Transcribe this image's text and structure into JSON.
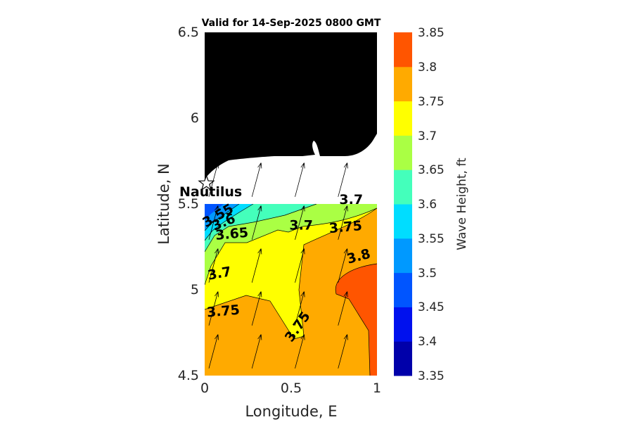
{
  "chart_data": {
    "type": "contour",
    "title": "Valid for 14-Sep-2025 0800 GMT",
    "xlabel": "Longitude, E",
    "ylabel": "Latitude, N",
    "xlim": [
      0,
      1
    ],
    "ylim": [
      4.5,
      6.5
    ],
    "xticks": [
      "0",
      "0.5",
      "1"
    ],
    "yticks": [
      "4.5",
      "5",
      "5.5",
      "6",
      "6.5"
    ],
    "colorbar": {
      "label": "Wave Height, ft",
      "range": [
        3.35,
        3.85
      ],
      "ticks": [
        "3.35",
        "3.4",
        "3.45",
        "3.5",
        "3.55",
        "3.6",
        "3.65",
        "3.7",
        "3.75",
        "3.8",
        "3.85"
      ],
      "colors": [
        "#0000aa",
        "#0011ee",
        "#0055ff",
        "#0099ff",
        "#00ddff",
        "#44ffbb",
        "#aaff44",
        "#ffff00",
        "#ffaa00",
        "#ff5500"
      ]
    },
    "contour_labels": [
      {
        "text": "3.55",
        "x": 0.09,
        "y": 5.41,
        "angle": -30
      },
      {
        "text": "3.6",
        "x": 0.12,
        "y": 5.37,
        "angle": -22
      },
      {
        "text": "3.65",
        "x": 0.16,
        "y": 5.3,
        "angle": -5
      },
      {
        "text": "3.7",
        "x": 0.09,
        "y": 5.07,
        "angle": -10
      },
      {
        "text": "3.7",
        "x": 0.56,
        "y": 5.35,
        "angle": 0
      },
      {
        "text": "3.7",
        "x": 0.85,
        "y": 5.5,
        "angle": 0
      },
      {
        "text": "3.75",
        "x": 0.82,
        "y": 5.34,
        "angle": -5
      },
      {
        "text": "3.75",
        "x": 0.11,
        "y": 4.85,
        "angle": -5
      },
      {
        "text": "3.75",
        "x": 0.56,
        "y": 4.77,
        "angle": -55
      },
      {
        "text": "3.8",
        "x": 0.9,
        "y": 5.17,
        "angle": -15
      }
    ],
    "station": {
      "name": "Nautilus",
      "lon": 0.01,
      "lat": 5.62
    },
    "land": "black",
    "vectors": "wave direction arrows pointing NNE"
  }
}
